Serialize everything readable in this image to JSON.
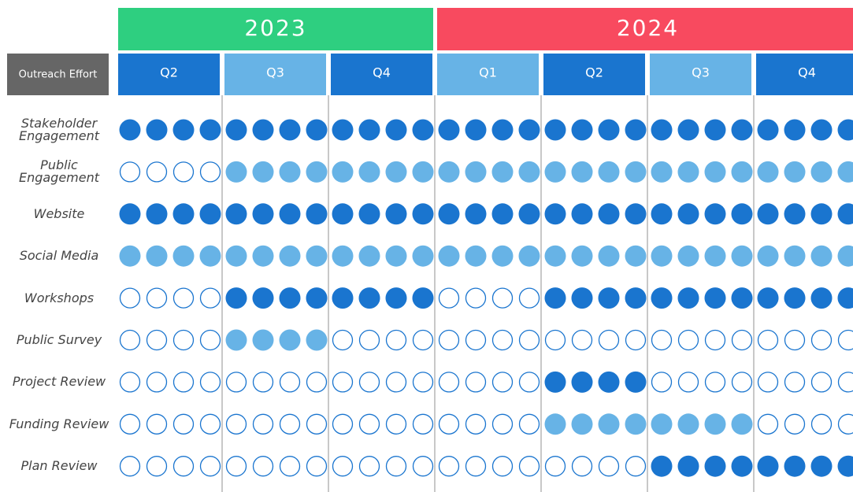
{
  "years": [
    {
      "label": "2023",
      "color": "#2ecf80",
      "span": 3
    },
    {
      "label": "2024",
      "color": "#f84a5f",
      "span": 4
    }
  ],
  "row_header": "Outreach Effort",
  "quarters": [
    {
      "label": "Q2",
      "color": "#1a75cf"
    },
    {
      "label": "Q3",
      "color": "#67b3e6"
    },
    {
      "label": "Q4",
      "color": "#1a75cf"
    },
    {
      "label": "Q1",
      "color": "#67b3e6"
    },
    {
      "label": "Q2",
      "color": "#1a75cf"
    },
    {
      "label": "Q3",
      "color": "#67b3e6"
    },
    {
      "label": "Q4",
      "color": "#1a75cf"
    }
  ],
  "rows": [
    {
      "label": "Stakeholder\nEngagement",
      "cells": [
        "dark",
        "dark",
        "dark",
        "dark",
        "dark",
        "dark",
        "dark"
      ]
    },
    {
      "label": "Public\nEngagement",
      "cells": [
        "empty",
        "light",
        "light",
        "light",
        "light",
        "light",
        "light"
      ]
    },
    {
      "label": "Website",
      "cells": [
        "dark",
        "dark",
        "dark",
        "dark",
        "dark",
        "dark",
        "dark"
      ]
    },
    {
      "label": "Social Media",
      "cells": [
        "light",
        "light",
        "light",
        "light",
        "light",
        "light",
        "light"
      ]
    },
    {
      "label": "Workshops",
      "cells": [
        "empty",
        "dark",
        "dark",
        "empty",
        "dark",
        "dark",
        "dark"
      ]
    },
    {
      "label": "Public Survey",
      "cells": [
        "empty",
        "light",
        "empty",
        "empty",
        "empty",
        "empty",
        "empty"
      ]
    },
    {
      "label": "Project Review",
      "cells": [
        "empty",
        "empty",
        "empty",
        "empty",
        "dark",
        "empty",
        "empty"
      ]
    },
    {
      "label": "Funding Review",
      "cells": [
        "empty",
        "empty",
        "empty",
        "empty",
        "light",
        "light",
        "empty"
      ]
    },
    {
      "label": "Plan Review",
      "cells": [
        "empty",
        "empty",
        "empty",
        "empty",
        "empty",
        "dark",
        "dark"
      ]
    }
  ],
  "state_colors": {
    "dark": "#1a75cf",
    "light": "#67b3e6",
    "empty": "#ffffff"
  }
}
